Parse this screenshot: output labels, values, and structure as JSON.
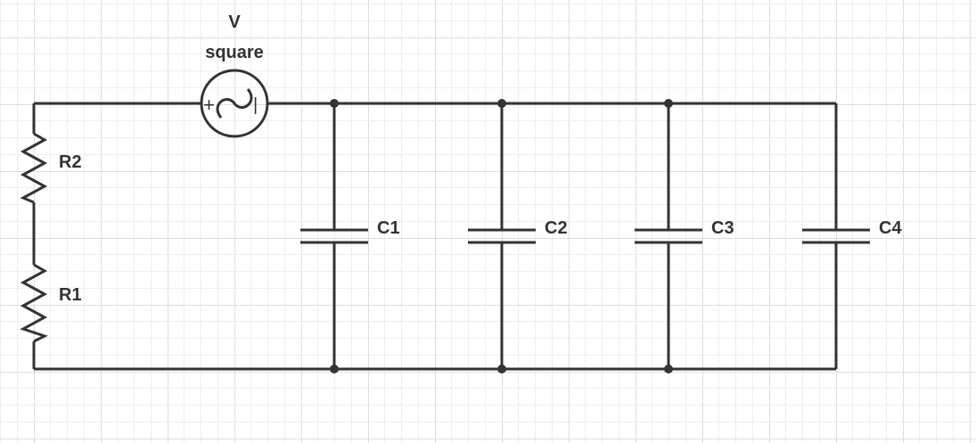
{
  "source": {
    "name": "V",
    "type": "square",
    "plus_symbol": "+",
    "minus_symbol": "|",
    "icon": "ac-source-icon"
  },
  "components": {
    "r2": "R2",
    "r1": "R1",
    "c1": "C1",
    "c2": "C2",
    "c3": "C3",
    "c4": "C4"
  },
  "colors": {
    "wire": "#333333",
    "grid_major": "#dddddd",
    "grid_minor": "#eeeeee",
    "background": "#ffffff"
  }
}
